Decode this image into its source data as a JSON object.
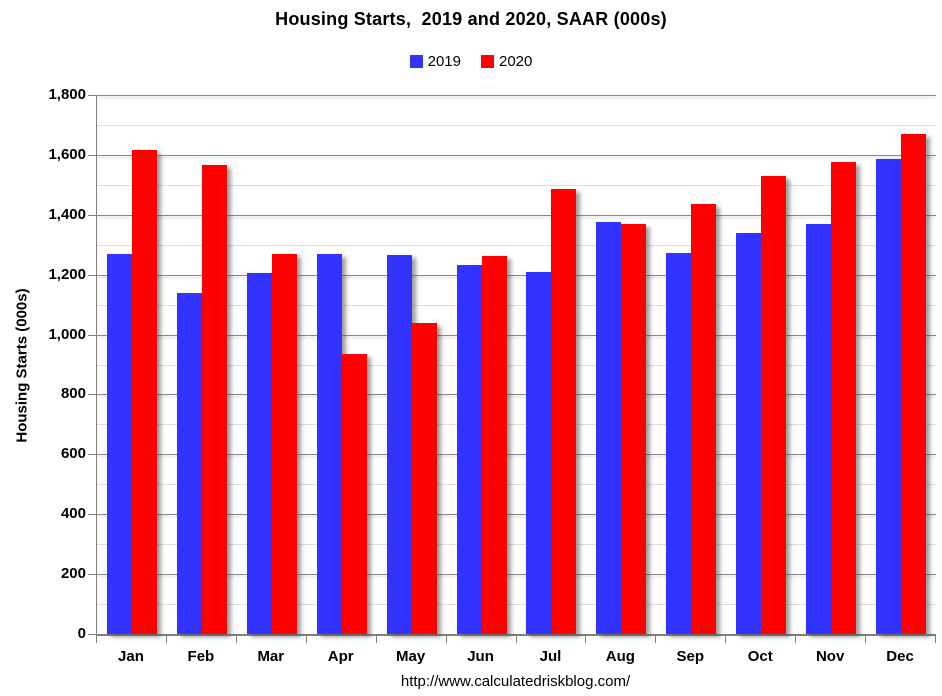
{
  "title": "Housing Starts,  2019 and 2020, SAAR (000s)",
  "y_axis_title": "Housing Starts (000s)",
  "footer_url": "http://www.calculatedriskblog.com/",
  "colors": {
    "series_2019": "#3333ff",
    "series_2020": "#ff0000",
    "major_gridline": "#878787",
    "minor_gridline": "#dedede",
    "axis": "#808080"
  },
  "chart_data": {
    "type": "bar",
    "title": "Housing Starts,  2019 and 2020, SAAR (000s)",
    "xlabel": "",
    "ylabel": "Housing Starts (000s)",
    "ylim": [
      0,
      1800
    ],
    "y_major_step": 200,
    "y_minor_step": 100,
    "grid": true,
    "legend_position": "top-center",
    "y_tick_labels": [
      "0",
      "200",
      "400",
      "600",
      "800",
      "1,000",
      "1,200",
      "1,400",
      "1,600",
      "1,800"
    ],
    "categories": [
      "Jan",
      "Feb",
      "Mar",
      "Apr",
      "May",
      "Jun",
      "Jul",
      "Aug",
      "Sep",
      "Oct",
      "Nov",
      "Dec"
    ],
    "series": [
      {
        "name": "2019",
        "color": "#3333ff",
        "values": [
          1270,
          1138,
          1205,
          1268,
          1266,
          1233,
          1210,
          1375,
          1272,
          1340,
          1371,
          1585
        ]
      },
      {
        "name": "2020",
        "color": "#ff0000",
        "values": [
          1617,
          1566,
          1268,
          934,
          1039,
          1264,
          1487,
          1371,
          1437,
          1530,
          1578,
          1669
        ]
      }
    ]
  }
}
